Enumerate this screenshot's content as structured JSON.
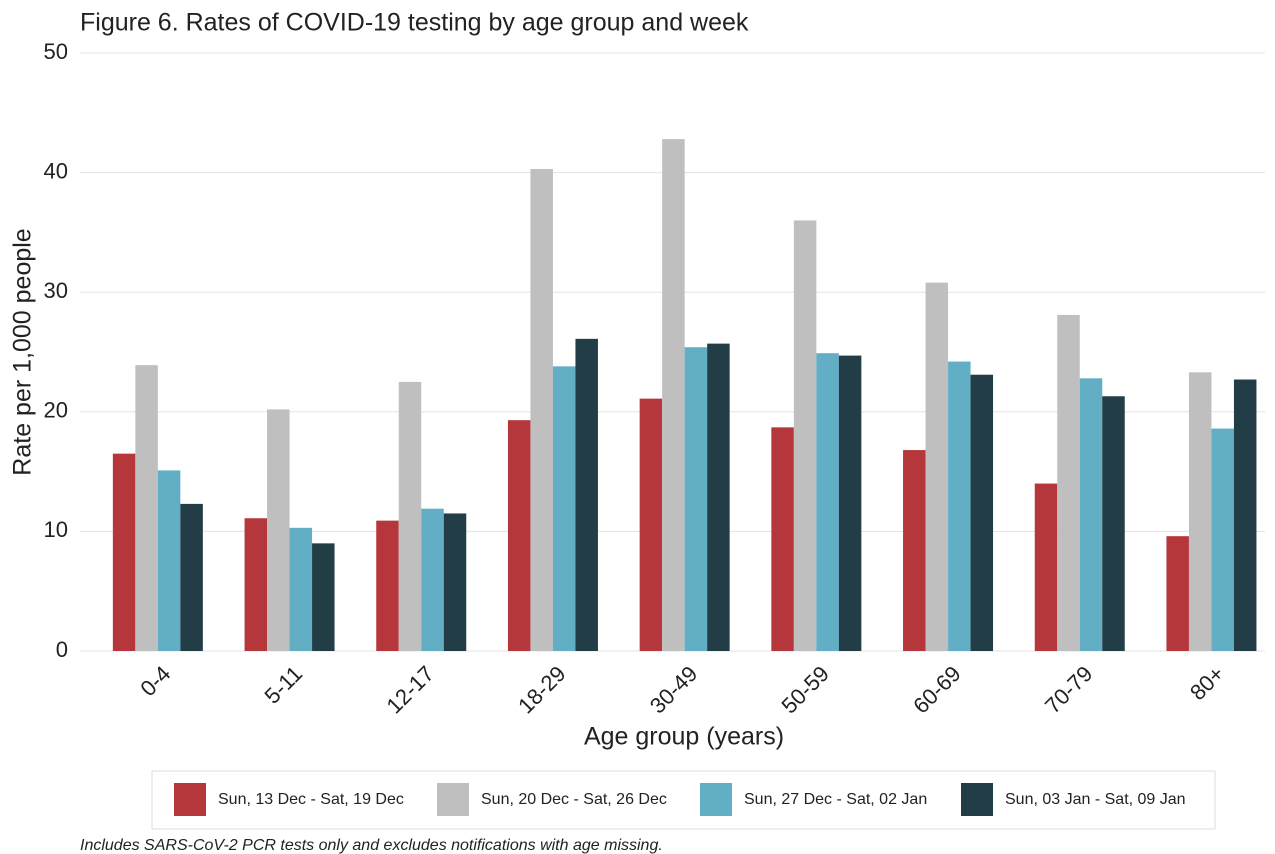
{
  "chart_data": {
    "type": "bar",
    "title": "Figure 6. Rates of COVID-19 testing by age group and week",
    "x_label": "Age group (years)",
    "y_label": "Rate per 1,000 people",
    "categories": [
      "0-4",
      "5-11",
      "12-17",
      "18-29",
      "30-49",
      "50-59",
      "60-69",
      "70-79",
      "80+"
    ],
    "series": [
      {
        "name": "Sun, 13 Dec - Sat, 19 Dec",
        "color": "#b5373b",
        "values": [
          16.5,
          11.1,
          10.9,
          19.3,
          21.1,
          18.7,
          16.8,
          14.0,
          9.6
        ]
      },
      {
        "name": "Sun, 20 Dec - Sat, 26 Dec",
        "color": "#bfbfbf",
        "values": [
          23.9,
          20.2,
          22.5,
          40.3,
          42.8,
          36.0,
          30.8,
          28.1,
          23.3
        ]
      },
      {
        "name": "Sun, 27 Dec - Sat, 02 Jan",
        "color": "#62aec5",
        "values": [
          15.1,
          10.3,
          11.9,
          23.8,
          25.4,
          24.9,
          24.2,
          22.8,
          18.6
        ]
      },
      {
        "name": "Sun, 03 Jan - Sat, 09 Jan",
        "color": "#233d46",
        "values": [
          12.3,
          9.0,
          11.5,
          26.1,
          25.7,
          24.7,
          23.1,
          21.3,
          22.7
        ]
      }
    ],
    "ylim": [
      0,
      50
    ],
    "yticks": [
      0,
      10,
      20,
      30,
      40,
      50
    ],
    "grid": true,
    "legend": "bottom",
    "footnote": "Includes SARS-CoV-2 PCR tests only and excludes notifications with age missing."
  }
}
